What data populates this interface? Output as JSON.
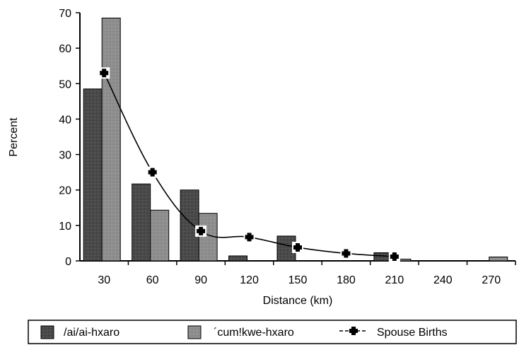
{
  "chart_data": {
    "type": "bar",
    "categories": [
      "30",
      "60",
      "90",
      "120",
      "150",
      "180",
      "210",
      "240",
      "270"
    ],
    "series": [
      {
        "name": "/ai/ai-hxaro",
        "type": "bar",
        "color": "#3a3a3a",
        "values": [
          48.5,
          21.7,
          20,
          1.4,
          7,
          0,
          2.3,
          0,
          0
        ]
      },
      {
        "name": "´cum!kwe-hxaro",
        "type": "bar",
        "color": "#8a8a8a",
        "values": [
          68.5,
          14.3,
          13.4,
          0,
          0,
          0,
          0.5,
          0,
          1.1
        ]
      },
      {
        "name": "Spouse Births",
        "type": "line",
        "color": "#000000",
        "values": [
          53,
          25,
          8.4,
          6.7,
          3.8,
          2.1,
          1.2,
          null,
          null
        ]
      }
    ],
    "xlabel": "Distance (km)",
    "ylabel": "Percent",
    "ylim": [
      0,
      70
    ],
    "yticks": [
      "0",
      "10",
      "20",
      "30",
      "40",
      "50",
      "60",
      "70"
    ],
    "grid": false,
    "legend_position": "bottom"
  }
}
